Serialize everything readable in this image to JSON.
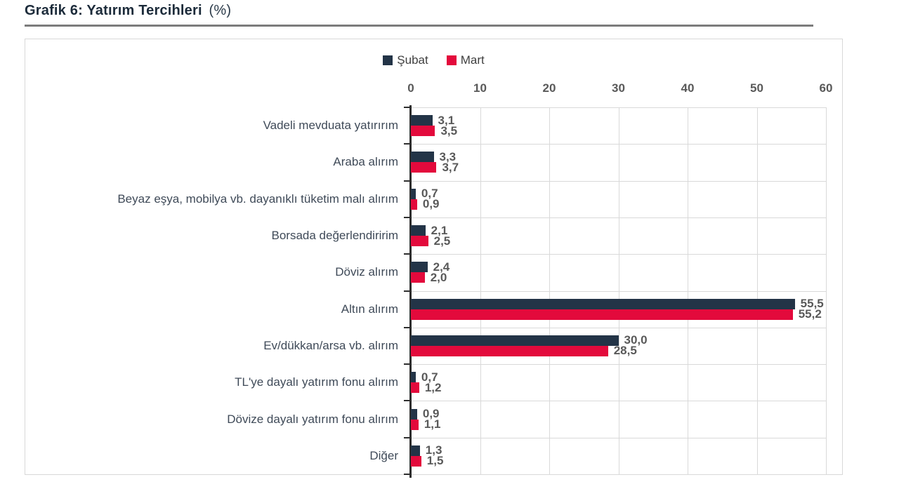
{
  "page": {
    "title": "Grafik 6: Yatırım Tercihleri",
    "title_suffix": "(%)"
  },
  "chart_data": {
    "type": "bar",
    "orientation": "horizontal",
    "title": "Grafik 6: Yatırım Tercihleri (%)",
    "categories": [
      "Vadeli mevduata yatırırım",
      "Araba alırım",
      "Beyaz eşya, mobilya vb. dayanıklı tüketim malı alırım",
      "Borsada değerlendiririm",
      "Döviz alırım",
      "Altın alırım",
      "Ev/dükkan/arsa vb. alırım",
      "TL'ye dayalı yatırım fonu alırım",
      "Dövize dayalı yatırım fonu alırım",
      "Diğer"
    ],
    "series": [
      {
        "name": "Şubat",
        "color": "#233447",
        "values": [
          3.1,
          3.3,
          0.7,
          2.1,
          2.4,
          55.5,
          30.0,
          0.7,
          0.9,
          1.3
        ]
      },
      {
        "name": "Mart",
        "color": "#e30a3c",
        "values": [
          3.5,
          3.7,
          0.9,
          2.5,
          2.0,
          55.2,
          28.5,
          1.2,
          1.1,
          1.5
        ]
      }
    ],
    "x_ticks": [
      "0",
      "10",
      "20",
      "30",
      "40",
      "50",
      "60"
    ],
    "xlim": [
      0,
      60
    ],
    "decimal_separator": ",",
    "grid": true,
    "legend_position": "top",
    "colors": {
      "subat": "#233447",
      "mart": "#e30a3c",
      "gridline": "#d9d9d9",
      "axis": "#2e2e2e",
      "value_label": "#595959",
      "category_label": "#3f4a58"
    }
  }
}
